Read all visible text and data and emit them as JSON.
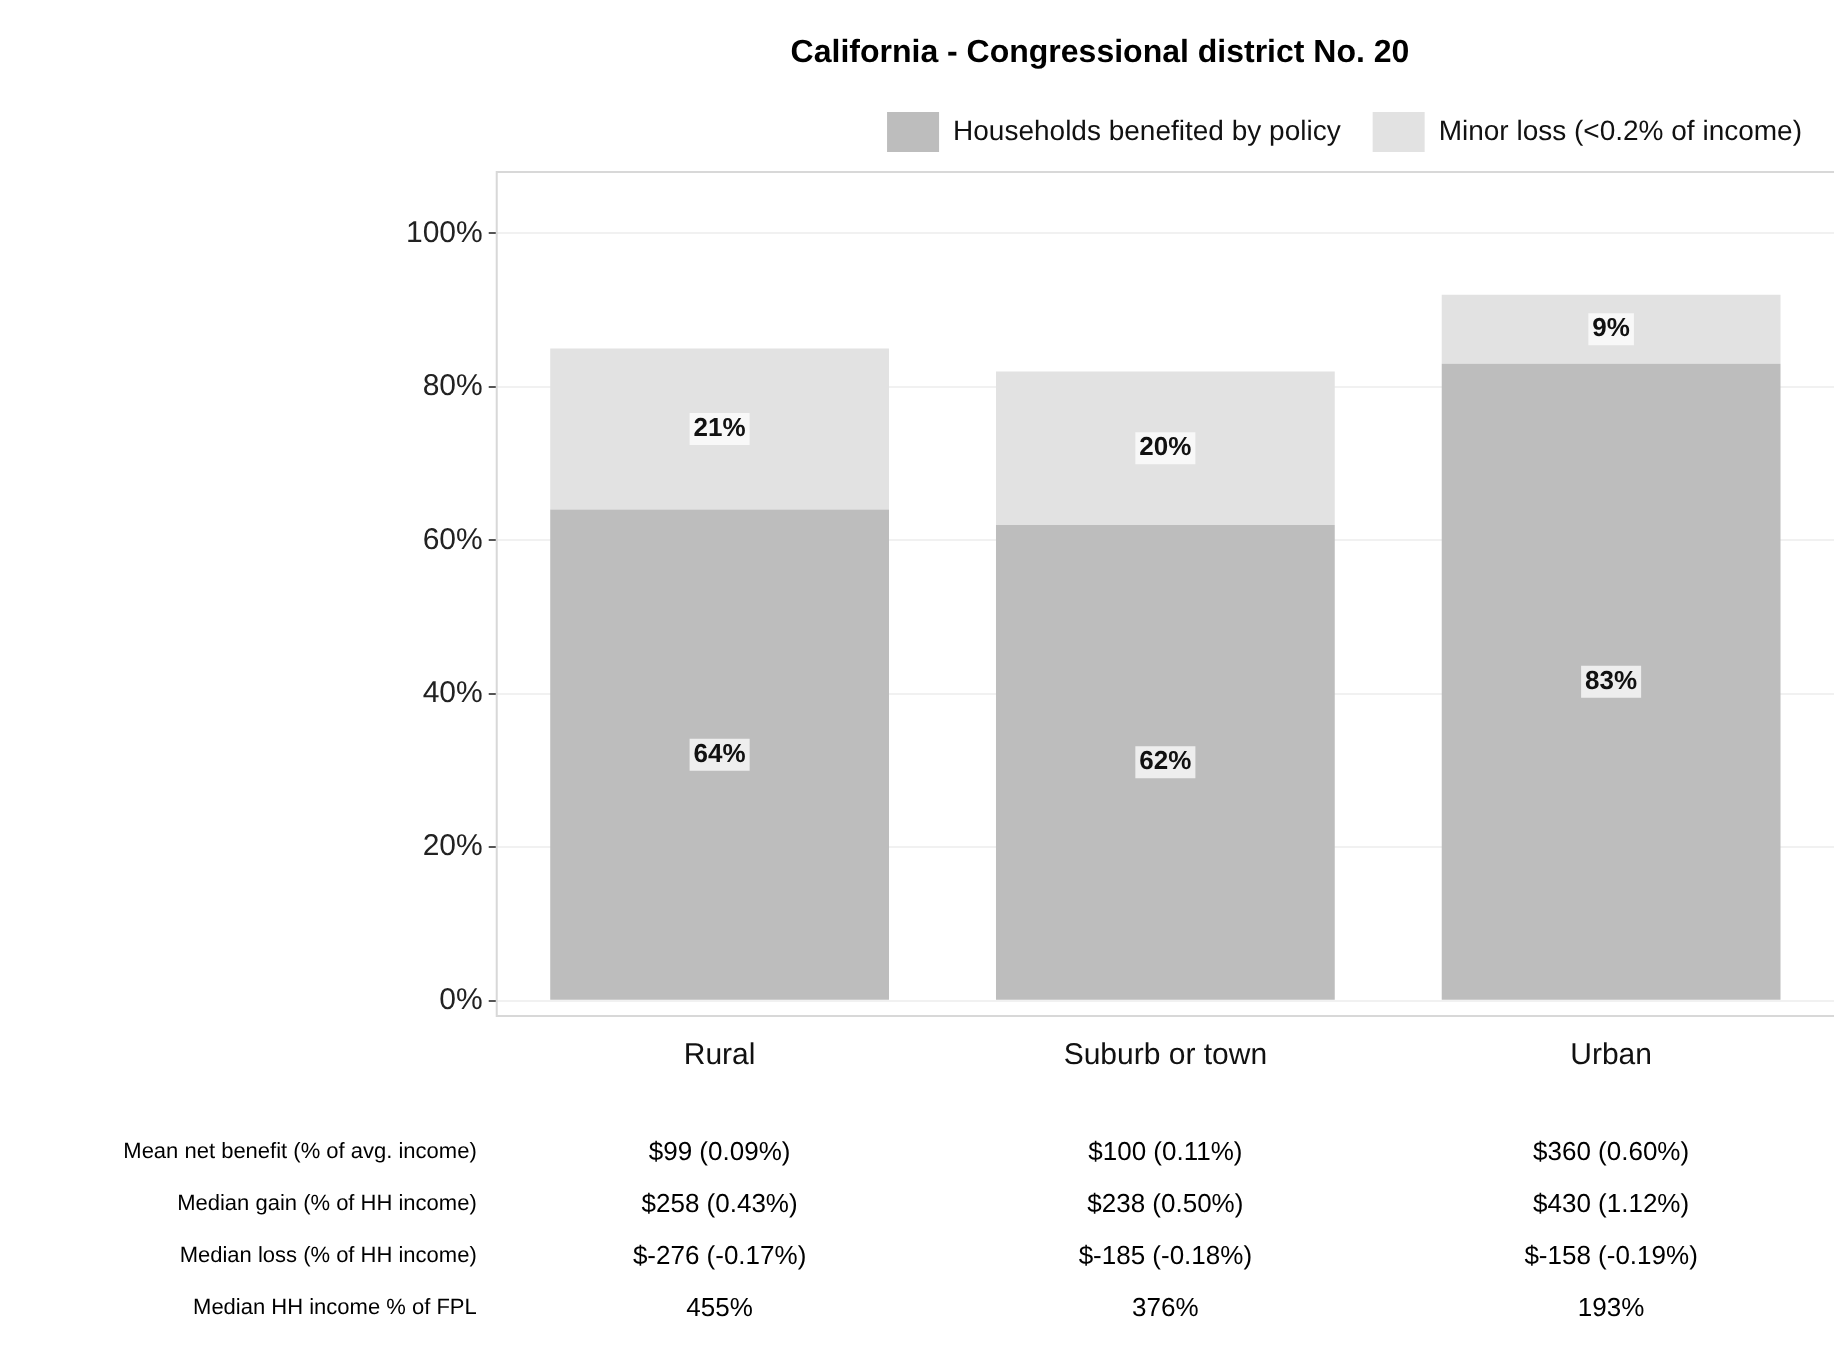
{
  "chart_data": {
    "type": "bar",
    "title": "California - Congressional district No. 20",
    "categories": [
      "Rural",
      "Suburb or town",
      "Urban"
    ],
    "stacked": true,
    "series": [
      {
        "name": "Households benefited by policy",
        "color": "#bdbdbd",
        "values": [
          64,
          62,
          83
        ],
        "value_labels": [
          "64%",
          "62%",
          "83%"
        ]
      },
      {
        "name": "Minor loss (<0.2% of income)",
        "color": "#e2e2e2",
        "values": [
          21,
          20,
          9
        ],
        "value_labels": [
          "21%",
          "20%",
          "9%"
        ]
      }
    ],
    "ylim": [
      -2,
      108
    ],
    "yticks": [
      {
        "value": 0,
        "label": "0%"
      },
      {
        "value": 20,
        "label": "20%"
      },
      {
        "value": 40,
        "label": "40%"
      },
      {
        "value": 60,
        "label": "60%"
      },
      {
        "value": 80,
        "label": "80%"
      },
      {
        "value": 100,
        "label": "100%"
      }
    ],
    "grid": "y",
    "legend": "top",
    "annotations": [
      "Mean net benefit (% of avg. income)",
      "$99 (0.09%)",
      "$100 (0.11%)",
      "$360 (0.60%)",
      "Median gain (% of HH income)",
      "$258 (0.43%)",
      "$238 (0.50%)",
      "$430 (1.12%)",
      "Median loss (% of HH income)",
      "$-276 (-0.17%)",
      "$-185 (-0.18%)",
      "$-158 (-0.19%)",
      "Median HH income % of FPL",
      "455%",
      "376%",
      "193%"
    ]
  }
}
